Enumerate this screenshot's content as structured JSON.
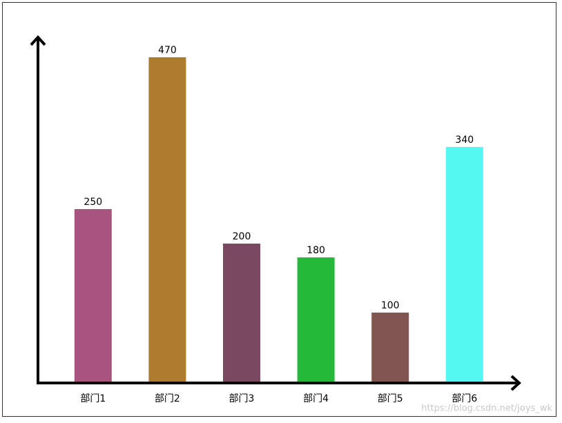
{
  "chart_data": {
    "type": "bar",
    "categories": [
      "部门1",
      "部门2",
      "部门3",
      "部门4",
      "部门5",
      "部门6"
    ],
    "values": [
      250,
      470,
      200,
      180,
      100,
      340
    ],
    "colors": [
      "#a8547f",
      "#ad7c2f",
      "#7b4862",
      "#27b93a",
      "#825550",
      "#55f7f2"
    ],
    "ylim": [
      0,
      500
    ],
    "watermark": "https://blog.csdn.net/joys_wk"
  }
}
